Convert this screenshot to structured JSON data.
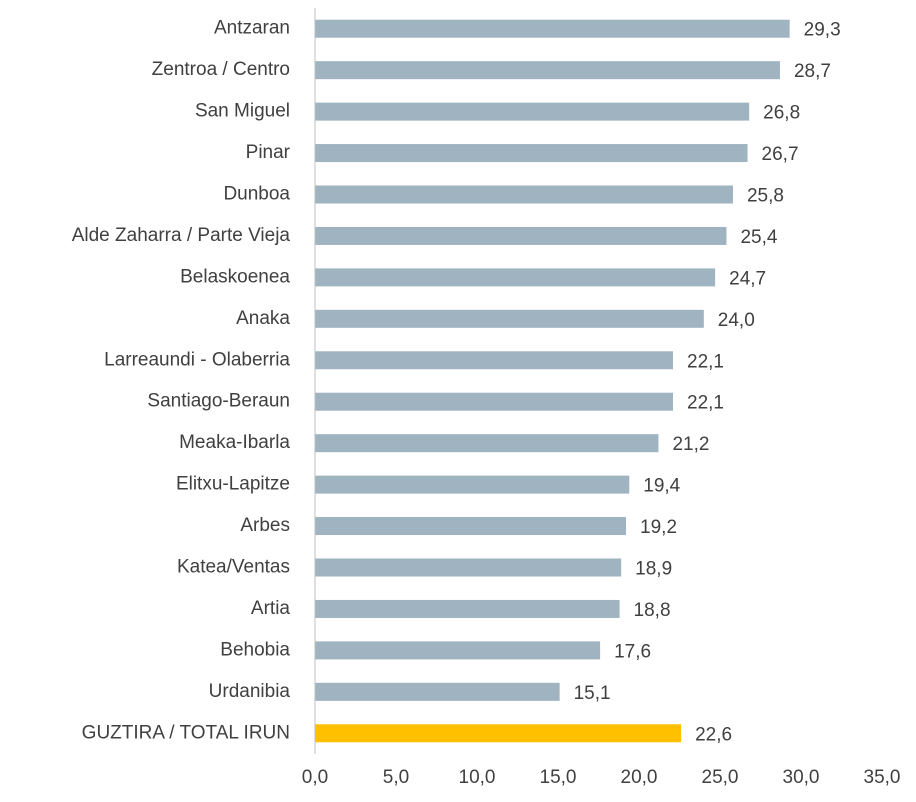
{
  "chart_data": {
    "type": "hbar",
    "categories": [
      "Antzaran",
      "Zentroa / Centro",
      "San Miguel",
      "Pinar",
      "Dunboa",
      "Alde Zaharra / Parte Vieja",
      "Belaskoenea",
      "Anaka",
      "Larreaundi - Olaberria",
      "Santiago-Beraun",
      "Meaka-Ibarla",
      "Elitxu-Lapitze",
      "Arbes",
      "Katea/Ventas",
      "Artia",
      "Behobia",
      "Urdanibia",
      "GUZTIRA / TOTAL IRUN"
    ],
    "values": [
      29.3,
      28.7,
      26.8,
      26.7,
      25.8,
      25.4,
      24.7,
      24.0,
      22.1,
      22.1,
      21.2,
      19.4,
      19.2,
      18.9,
      18.8,
      17.6,
      15.1,
      22.6
    ],
    "value_labels": [
      "29,3",
      "28,7",
      "26,8",
      "26,7",
      "25,8",
      "25,4",
      "24,7",
      "24,0",
      "22,1",
      "22,1",
      "21,2",
      "19,4",
      "19,2",
      "18,9",
      "18,8",
      "17,6",
      "15,1",
      "22,6"
    ],
    "colors": [
      "#9fb4c0",
      "#9fb4c0",
      "#9fb4c0",
      "#9fb4c0",
      "#9fb4c0",
      "#9fb4c0",
      "#9fb4c0",
      "#9fb4c0",
      "#9fb4c0",
      "#9fb4c0",
      "#9fb4c0",
      "#9fb4c0",
      "#9fb4c0",
      "#9fb4c0",
      "#9fb4c0",
      "#9fb4c0",
      "#9fb4c0",
      "#ffc000"
    ],
    "xlim": [
      0,
      35
    ],
    "xticks": [
      {
        "value": 0,
        "label": "0,0"
      },
      {
        "value": 5,
        "label": "5,0"
      },
      {
        "value": 10,
        "label": "10,0"
      },
      {
        "value": 15,
        "label": "15,0"
      },
      {
        "value": 20,
        "label": "20,0"
      },
      {
        "value": 25,
        "label": "25,0"
      },
      {
        "value": 30,
        "label": "30,0"
      },
      {
        "value": 35,
        "label": "35,0"
      }
    ],
    "grid": false
  }
}
